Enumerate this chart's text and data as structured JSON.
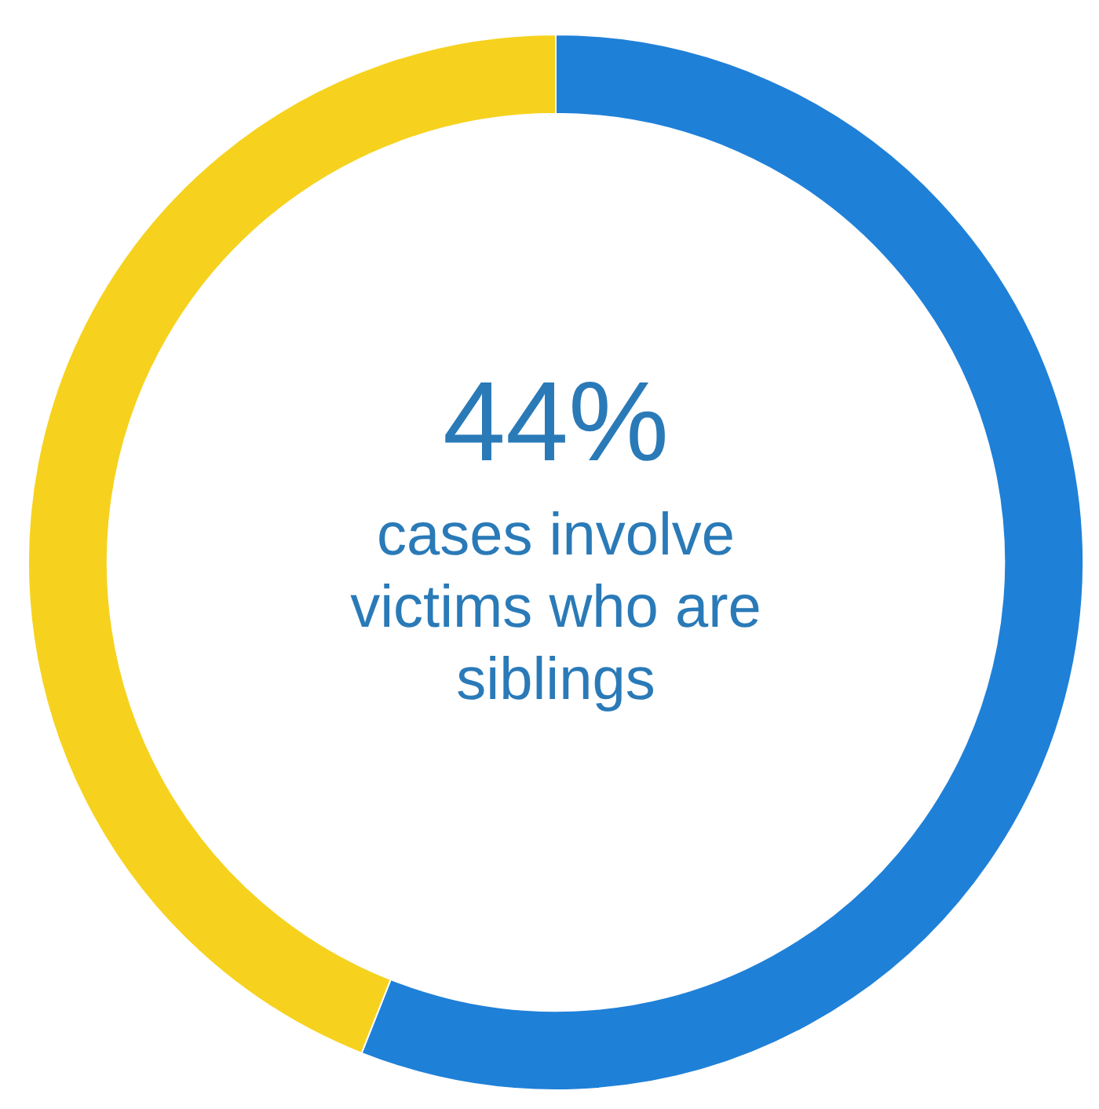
{
  "chart_data": {
    "type": "donut",
    "categories": [
      null,
      null
    ],
    "values": [
      56,
      44
    ],
    "colors": [
      "#1f80d8",
      "#f6d21e"
    ],
    "value_labels": [
      null,
      "44%"
    ],
    "annotations": [
      "cases involve victims who are siblings"
    ]
  }
}
